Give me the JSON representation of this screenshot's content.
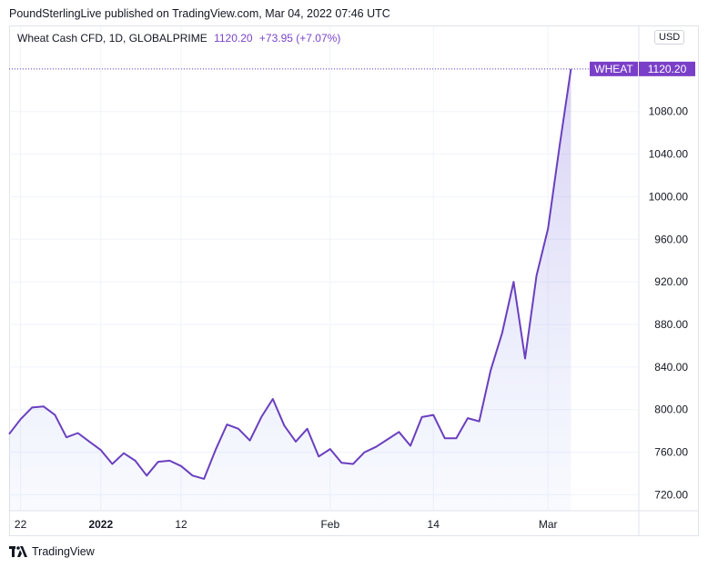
{
  "header": {
    "published_by": "PoundSterlingLive published on TradingView.com, Mar 04, 2022 07:46 UTC"
  },
  "legend": {
    "symbol": "Wheat Cash CFD, 1D, GLOBALPRIME",
    "last": "1120.20",
    "change": "+73.95 (+7.07%)"
  },
  "currency": "USD",
  "price_tag": {
    "name": "WHEAT",
    "value": "1120.20"
  },
  "footer": {
    "brand": "TradingView"
  },
  "colors": {
    "line": "#6a3fbf",
    "tag_bg": "#7a3fc8",
    "grid": "#f0f3fa"
  },
  "chart_data": {
    "type": "area",
    "ylim": [
      705,
      1160
    ],
    "y_ticks": [
      1120,
      1080,
      1040,
      1000,
      960,
      920,
      880,
      840,
      800,
      760,
      720
    ],
    "y_tick_labels": [
      "1120.00",
      "1080.00",
      "1040.00",
      "1000.00",
      "960.00",
      "920.00",
      "880.00",
      "840.00",
      "800.00",
      "760.00",
      "720.00"
    ],
    "x_tick_labels": [
      {
        "label": "22",
        "index": 1,
        "bold": false
      },
      {
        "label": "2022",
        "index": 8,
        "bold": true
      },
      {
        "label": "12",
        "index": 15,
        "bold": false
      },
      {
        "label": "Feb",
        "index": 28,
        "bold": false
      },
      {
        "label": "14",
        "index": 37,
        "bold": false
      },
      {
        "label": "Mar",
        "index": 47,
        "bold": false
      }
    ],
    "x_slots": 54,
    "series": [
      {
        "values": [
          777,
          791,
          802,
          803,
          795,
          774,
          778,
          770,
          762,
          749,
          759,
          752,
          738,
          751,
          752,
          747,
          738,
          735,
          762,
          786,
          782,
          771,
          793,
          810,
          785,
          770,
          782,
          756,
          763,
          750,
          749,
          760,
          765,
          772,
          779,
          766,
          793,
          795,
          773,
          773,
          792,
          789,
          837,
          872,
          920,
          848,
          926,
          970,
          1047,
          1120
        ]
      }
    ]
  }
}
